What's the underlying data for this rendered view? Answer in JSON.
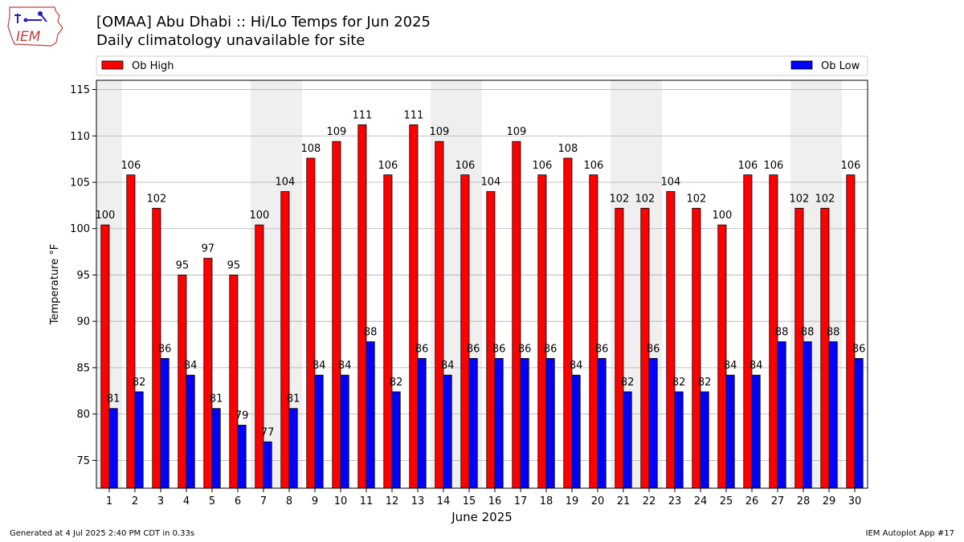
{
  "header": {
    "title": "[OMAA] Abu Dhabi :: Hi/Lo Temps for Jun 2025",
    "subtitle": "Daily climatology unavailable for site",
    "logo_text": "IEM"
  },
  "footer": {
    "generated": "Generated at 4 Jul 2025 2:40 PM CDT in 0.33s",
    "app": "IEM Autoplot App #17"
  },
  "chart_data": {
    "type": "bar",
    "xlabel": "June 2025",
    "ylabel": "Temperature °F",
    "ylim": [
      72,
      116
    ],
    "yticks": [
      75,
      80,
      85,
      90,
      95,
      100,
      105,
      110,
      115
    ],
    "grid": true,
    "legend_placement": "top",
    "weekend_shading_color": "#efefef",
    "categories": [
      "1",
      "2",
      "3",
      "4",
      "5",
      "6",
      "7",
      "8",
      "9",
      "10",
      "11",
      "12",
      "13",
      "14",
      "15",
      "16",
      "17",
      "18",
      "19",
      "20",
      "21",
      "22",
      "23",
      "24",
      "25",
      "26",
      "27",
      "28",
      "29",
      "30"
    ],
    "shaded_days": [
      1,
      7,
      8,
      14,
      15,
      21,
      22,
      28,
      29
    ],
    "series": [
      {
        "name": "Ob High",
        "color": "#ff0000",
        "values": [
          100.4,
          105.8,
          102.2,
          95.0,
          96.8,
          95.0,
          100.4,
          104.0,
          107.6,
          109.4,
          111.2,
          105.8,
          111.2,
          109.4,
          105.8,
          104.0,
          109.4,
          105.8,
          107.6,
          105.8,
          102.2,
          102.2,
          104.0,
          102.2,
          100.4,
          105.8,
          105.8,
          102.2,
          102.2,
          105.8
        ],
        "labels": [
          "100",
          "106",
          "102",
          "95",
          "97",
          "95",
          "100",
          "104",
          "108",
          "109",
          "111",
          "106",
          "111",
          "109",
          "106",
          "104",
          "109",
          "106",
          "108",
          "106",
          "102",
          "102",
          "104",
          "102",
          "100",
          "106",
          "106",
          "102",
          "102",
          "106"
        ]
      },
      {
        "name": "Ob Low",
        "color": "#0000ff",
        "values": [
          80.6,
          82.4,
          86.0,
          84.2,
          80.6,
          78.8,
          77.0,
          80.6,
          84.2,
          84.2,
          87.8,
          82.4,
          86.0,
          84.2,
          86.0,
          86.0,
          86.0,
          86.0,
          84.2,
          86.0,
          82.4,
          86.0,
          82.4,
          82.4,
          84.2,
          84.2,
          87.8,
          87.8,
          87.8,
          86.0
        ],
        "labels": [
          "81",
          "82",
          "86",
          "84",
          "81",
          "79",
          "77",
          "81",
          "84",
          "84",
          "88",
          "82",
          "86",
          "84",
          "86",
          "86",
          "86",
          "86",
          "84",
          "86",
          "82",
          "86",
          "82",
          "82",
          "84",
          "84",
          "88",
          "88",
          "88",
          "86"
        ]
      }
    ]
  }
}
